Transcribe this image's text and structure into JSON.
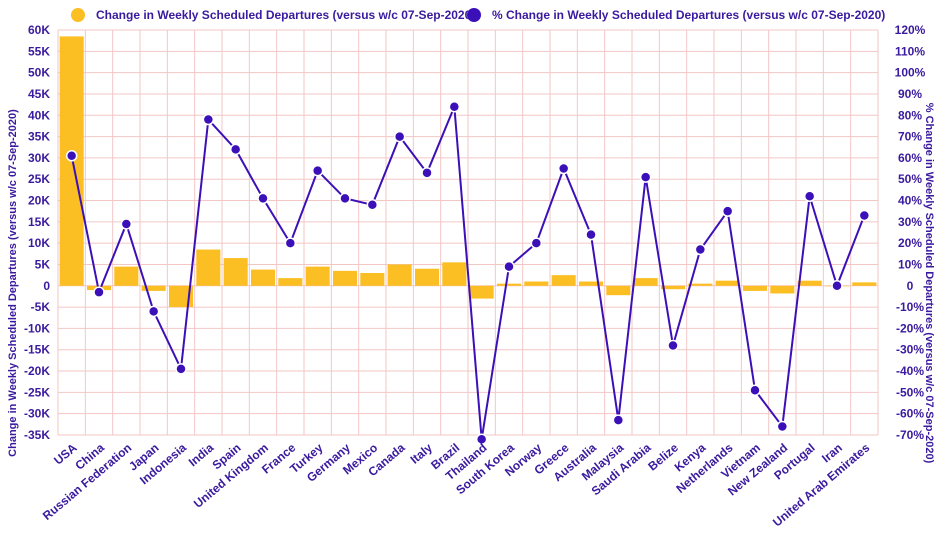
{
  "chart_data": {
    "type": "bar",
    "categories": [
      "USA",
      "China",
      "Russian Federation",
      "Japan",
      "Indonesia",
      "India",
      "Spain",
      "United Kingdom",
      "France",
      "Turkey",
      "Germany",
      "Mexico",
      "Canada",
      "Italy",
      "Brazil",
      "Thailand",
      "South Korea",
      "Norway",
      "Greece",
      "Australia",
      "Malaysia",
      "Saudi Arabia",
      "Belize",
      "Kenya",
      "Netherlands",
      "Vietnam",
      "New Zealand",
      "Portugal",
      "Iran",
      "United Arab Emirates"
    ],
    "series": [
      {
        "name": "Change in Weekly Scheduled Departures (versus w/c 07-Sep-2020)",
        "type": "bar",
        "axis": "left",
        "color": "#fbbf24",
        "values": [
          58500,
          -1000,
          4500,
          -1200,
          -5000,
          8500,
          6500,
          3800,
          1800,
          4500,
          3500,
          3000,
          5000,
          4000,
          5500,
          -3000,
          500,
          1000,
          2500,
          1000,
          -2200,
          1800,
          -800,
          500,
          1200,
          -1200,
          -1800,
          1200,
          0,
          800
        ]
      },
      {
        "name": "% Change in Weekly Scheduled Departures (versus w/c 07-Sep-2020)",
        "type": "line",
        "axis": "right",
        "color": "#3b10b8",
        "values": [
          61,
          -3,
          29,
          -12,
          -39,
          78,
          64,
          41,
          20,
          54,
          41,
          38,
          70,
          53,
          84,
          -72,
          9,
          20,
          55,
          24,
          -63,
          51,
          -28,
          17,
          35,
          -49,
          -66,
          42,
          0,
          33
        ]
      }
    ],
    "left_axis": {
      "title": "Change in Weekly Scheduled Departures (versus w/c 07-Sep-2020)",
      "ylim": [
        -35000,
        60000
      ],
      "ticks": [
        "-35K",
        "-30K",
        "-25K",
        "-20K",
        "-15K",
        "-10K",
        "-5K",
        "0",
        "5K",
        "10K",
        "15K",
        "20K",
        "25K",
        "30K",
        "35K",
        "40K",
        "45K",
        "50K",
        "55K",
        "60K"
      ]
    },
    "right_axis": {
      "title": "% Change in Weekly Scheduled Departures (versus w/c 07-Sep-2020)",
      "ylim": [
        -70,
        120
      ],
      "ticks": [
        "-70%",
        "-60%",
        "-50%",
        "-40%",
        "-30%",
        "-20%",
        "-10%",
        "0",
        "10%",
        "20%",
        "30%",
        "40%",
        "50%",
        "60%",
        "70%",
        "80%",
        "90%",
        "100%",
        "110%",
        "120%"
      ]
    },
    "legend_position": "top",
    "grid": true,
    "grid_color": "#f3c6c6"
  }
}
